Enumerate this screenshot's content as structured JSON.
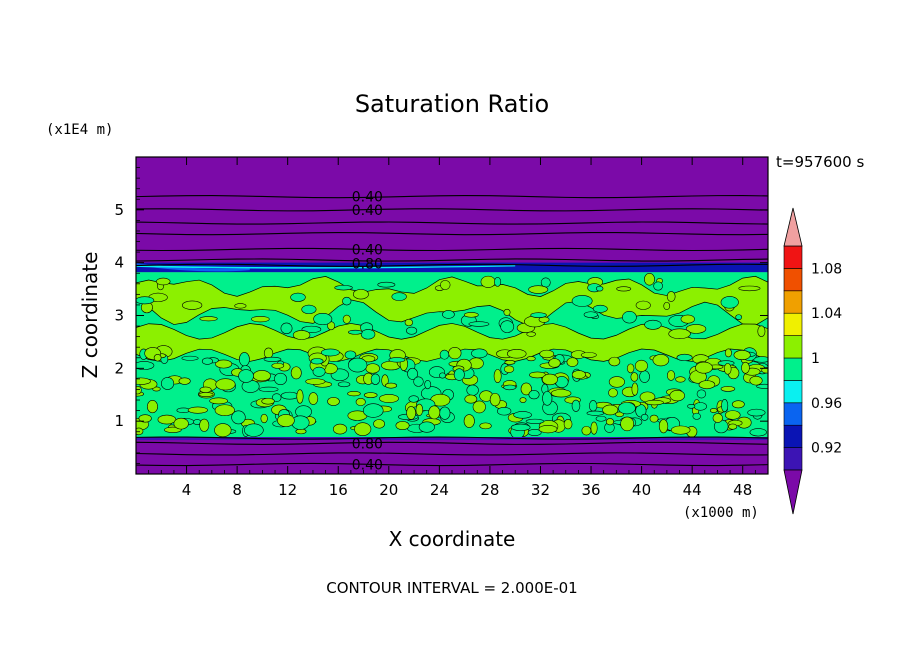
{
  "chart_data": {
    "type": "heatmap",
    "title": "Saturation Ratio",
    "xlabel": "X coordinate",
    "ylabel": "Z coordinate",
    "x_unit": "(x1000 m)",
    "y_unit": "(x1E4 m)",
    "xlim": [
      0,
      50
    ],
    "ylim": [
      0,
      6
    ],
    "x_ticks": [
      "4",
      "8",
      "12",
      "16",
      "20",
      "24",
      "28",
      "32",
      "36",
      "40",
      "44",
      "48"
    ],
    "y_ticks": [
      "1",
      "2",
      "3",
      "4",
      "5"
    ],
    "time_label": "t=957600 s",
    "contour_interval_label": "CONTOUR INTERVAL = 2.000E-01",
    "contour_labels": [
      {
        "text": "0.40",
        "x": 18.3,
        "z": 5.25
      },
      {
        "text": "0.40",
        "x": 18.3,
        "z": 5.0
      },
      {
        "text": "0.40",
        "x": 18.3,
        "z": 4.25
      },
      {
        "text": "0.80",
        "x": 18.3,
        "z": 3.98
      },
      {
        "text": "0.80",
        "x": 18.3,
        "z": 0.58
      },
      {
        "text": "0.40",
        "x": 18.3,
        "z": 0.18
      }
    ],
    "colorbar": {
      "levels": [
        0.9,
        0.92,
        0.94,
        0.96,
        0.98,
        1.0,
        1.02,
        1.04,
        1.06,
        1.08,
        1.1
      ],
      "tick_labels": [
        "0.92",
        "0.96",
        "1",
        "1.04",
        "1.08"
      ],
      "tick_values": [
        0.92,
        0.96,
        1.0,
        1.04,
        1.08
      ],
      "colors": [
        "#7b0aa8",
        "#3c14b4",
        "#0a14b4",
        "#0a64f0",
        "#0af0f0",
        "#00f08c",
        "#8cf000",
        "#f0f000",
        "#f0a000",
        "#f05000",
        "#f01414",
        "#f0a0a0"
      ],
      "extend": "both"
    },
    "layers": [
      {
        "z_from": 4.0,
        "z_to": 6.0,
        "range": "<0.90",
        "color": "#7b0aa8"
      },
      {
        "z_from": 3.82,
        "z_to": 4.0,
        "range": "0.92-0.96",
        "color": "#0a14b4"
      },
      {
        "z_from": 0.68,
        "z_to": 3.82,
        "range": "0.98-1.02",
        "color": "#00f08c"
      },
      {
        "z_from": 0.0,
        "z_to": 0.68,
        "range": "<0.90",
        "color": "#7b0aa8"
      }
    ],
    "contour_levels_z": [
      5.25,
      5.0,
      4.75,
      4.55,
      4.25,
      4.05,
      3.95,
      0.68,
      0.58,
      0.38,
      0.18
    ]
  }
}
